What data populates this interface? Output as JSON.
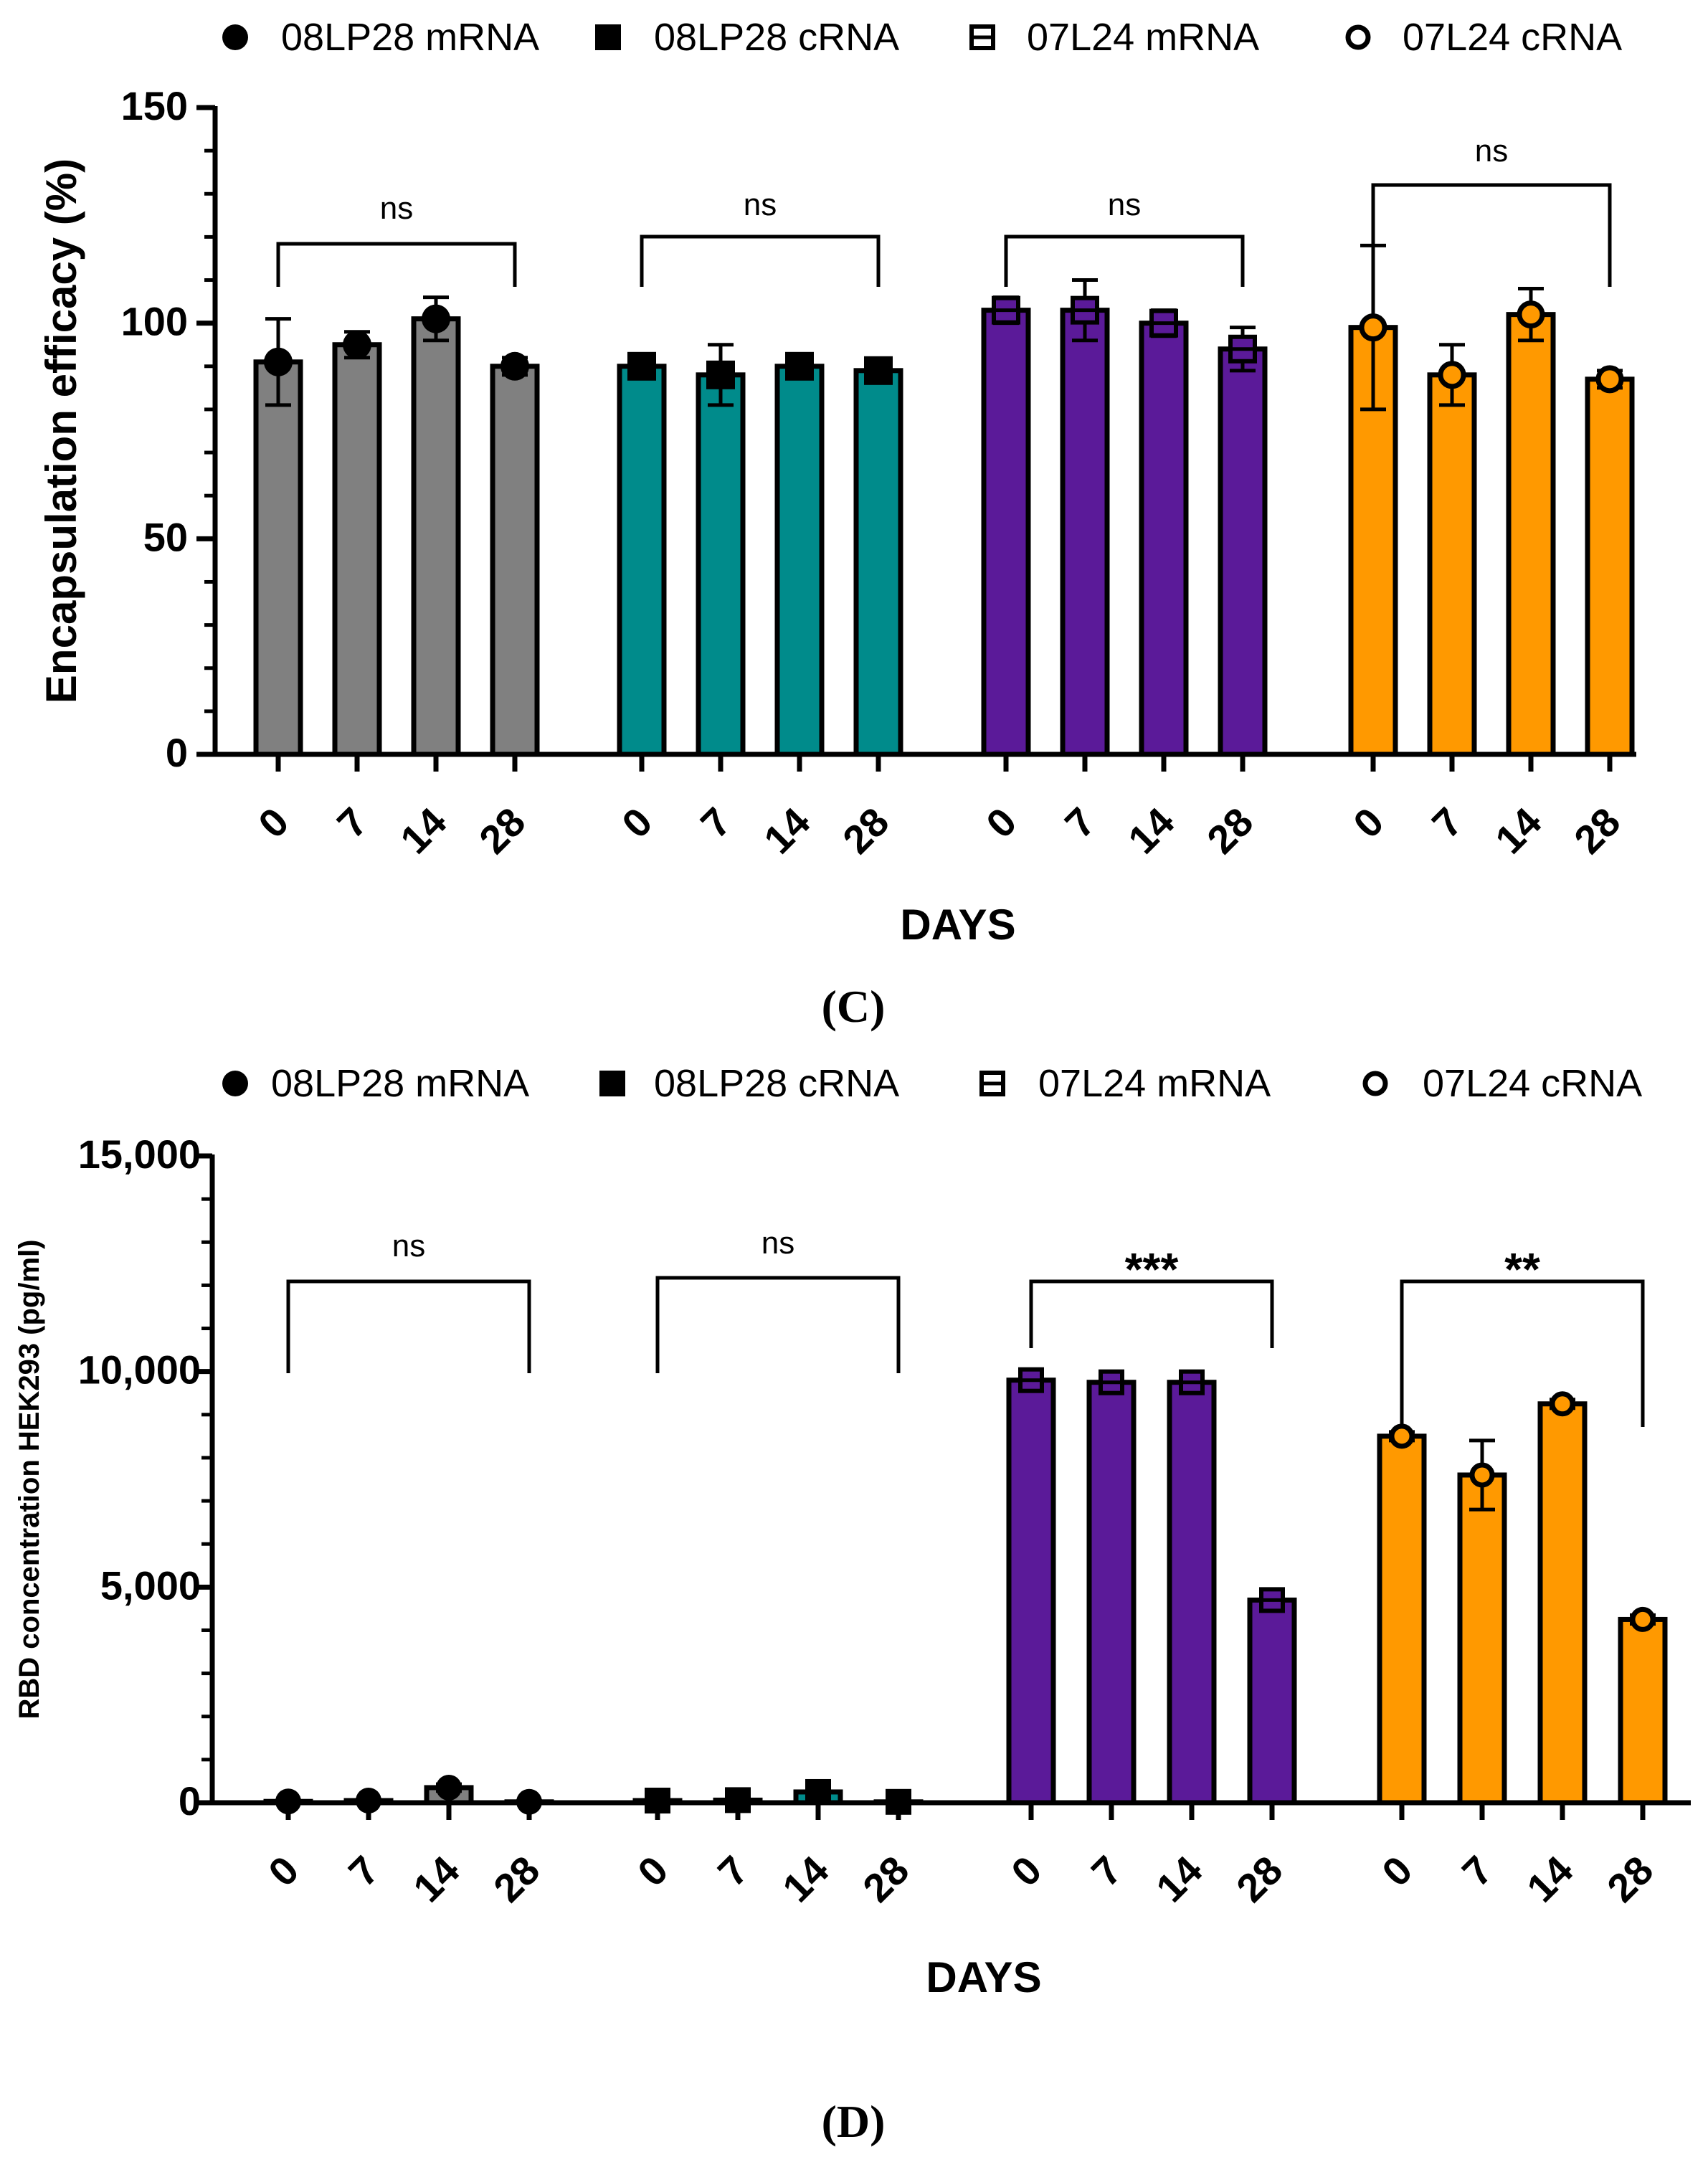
{
  "colors": {
    "08LP28 mRNA": "#808080",
    "08LP28 cRNA": "#008B8B",
    "07L24 mRNA": "#5B1A99",
    "07L24 cRNA": "#FF9900",
    "ink": "#000000"
  },
  "chart_data": [
    {
      "type": "bar",
      "panel_label": "(C)",
      "title": "",
      "xlabel": "DAYS",
      "ylabel": "Encapsulation efficacy (%)",
      "ylim": [
        0,
        150
      ],
      "yticks": [
        0,
        50,
        100,
        150
      ],
      "ytick_labels": [
        "0",
        "50",
        "100",
        "150"
      ],
      "grid": false,
      "legend_position": "top",
      "legend": [
        {
          "label": "08LP28 mRNA",
          "marker": "filled-circle"
        },
        {
          "label": "08LP28 cRNA",
          "marker": "filled-square"
        },
        {
          "label": "07L24 mRNA",
          "marker": "open-square"
        },
        {
          "label": "07L24 cRNA",
          "marker": "open-circle"
        }
      ],
      "categories": [
        "0",
        "7",
        "14",
        "28"
      ],
      "series": [
        {
          "name": "08LP28 mRNA",
          "values": [
            91,
            95,
            101,
            90
          ],
          "errors": [
            10,
            3,
            5,
            2
          ]
        },
        {
          "name": "08LP28 cRNA",
          "values": [
            90,
            88,
            90,
            89
          ],
          "errors": [
            2,
            7,
            2,
            2
          ]
        },
        {
          "name": "07L24 mRNA",
          "values": [
            103,
            103,
            100,
            94
          ],
          "errors": [
            3,
            7,
            3,
            5
          ]
        },
        {
          "name": "07L24 cRNA",
          "values": [
            99,
            88,
            102,
            87
          ],
          "errors": [
            19,
            7,
            6,
            2
          ]
        }
      ],
      "annotations": [
        "ns",
        "ns",
        "ns",
        "ns"
      ]
    },
    {
      "type": "bar",
      "panel_label": "(D)",
      "title": "",
      "xlabel": "DAYS",
      "ylabel": "RBD concentration HEK293 (pg/ml)",
      "ylim": [
        0,
        15000
      ],
      "yticks": [
        0,
        5000,
        10000,
        15000
      ],
      "ytick_labels": [
        "0",
        "5,000",
        "10,000",
        "15,000"
      ],
      "grid": false,
      "legend_position": "top",
      "legend": [
        {
          "label": "08LP28 mRNA",
          "marker": "filled-circle"
        },
        {
          "label": "08LP28 cRNA",
          "marker": "filled-square"
        },
        {
          "label": "07L24 mRNA",
          "marker": "open-square"
        },
        {
          "label": "07L24 cRNA",
          "marker": "open-circle"
        }
      ],
      "categories": [
        "0",
        "7",
        "14",
        "28"
      ],
      "series": [
        {
          "name": "08LP28 mRNA",
          "values": [
            30,
            50,
            350,
            20
          ],
          "errors": [
            20,
            20,
            80,
            15
          ]
        },
        {
          "name": "08LP28 cRNA",
          "values": [
            50,
            60,
            250,
            20
          ],
          "errors": [
            20,
            20,
            60,
            15
          ]
        },
        {
          "name": "07L24 mRNA",
          "values": [
            9800,
            9750,
            9750,
            4700
          ],
          "errors": [
            150,
            150,
            150,
            200
          ]
        },
        {
          "name": "07L24 cRNA",
          "values": [
            8500,
            7600,
            9250,
            4250
          ],
          "errors": [
            100,
            800,
            100,
            100
          ]
        }
      ],
      "annotations": [
        "ns",
        "ns",
        "***",
        "**"
      ]
    }
  ]
}
